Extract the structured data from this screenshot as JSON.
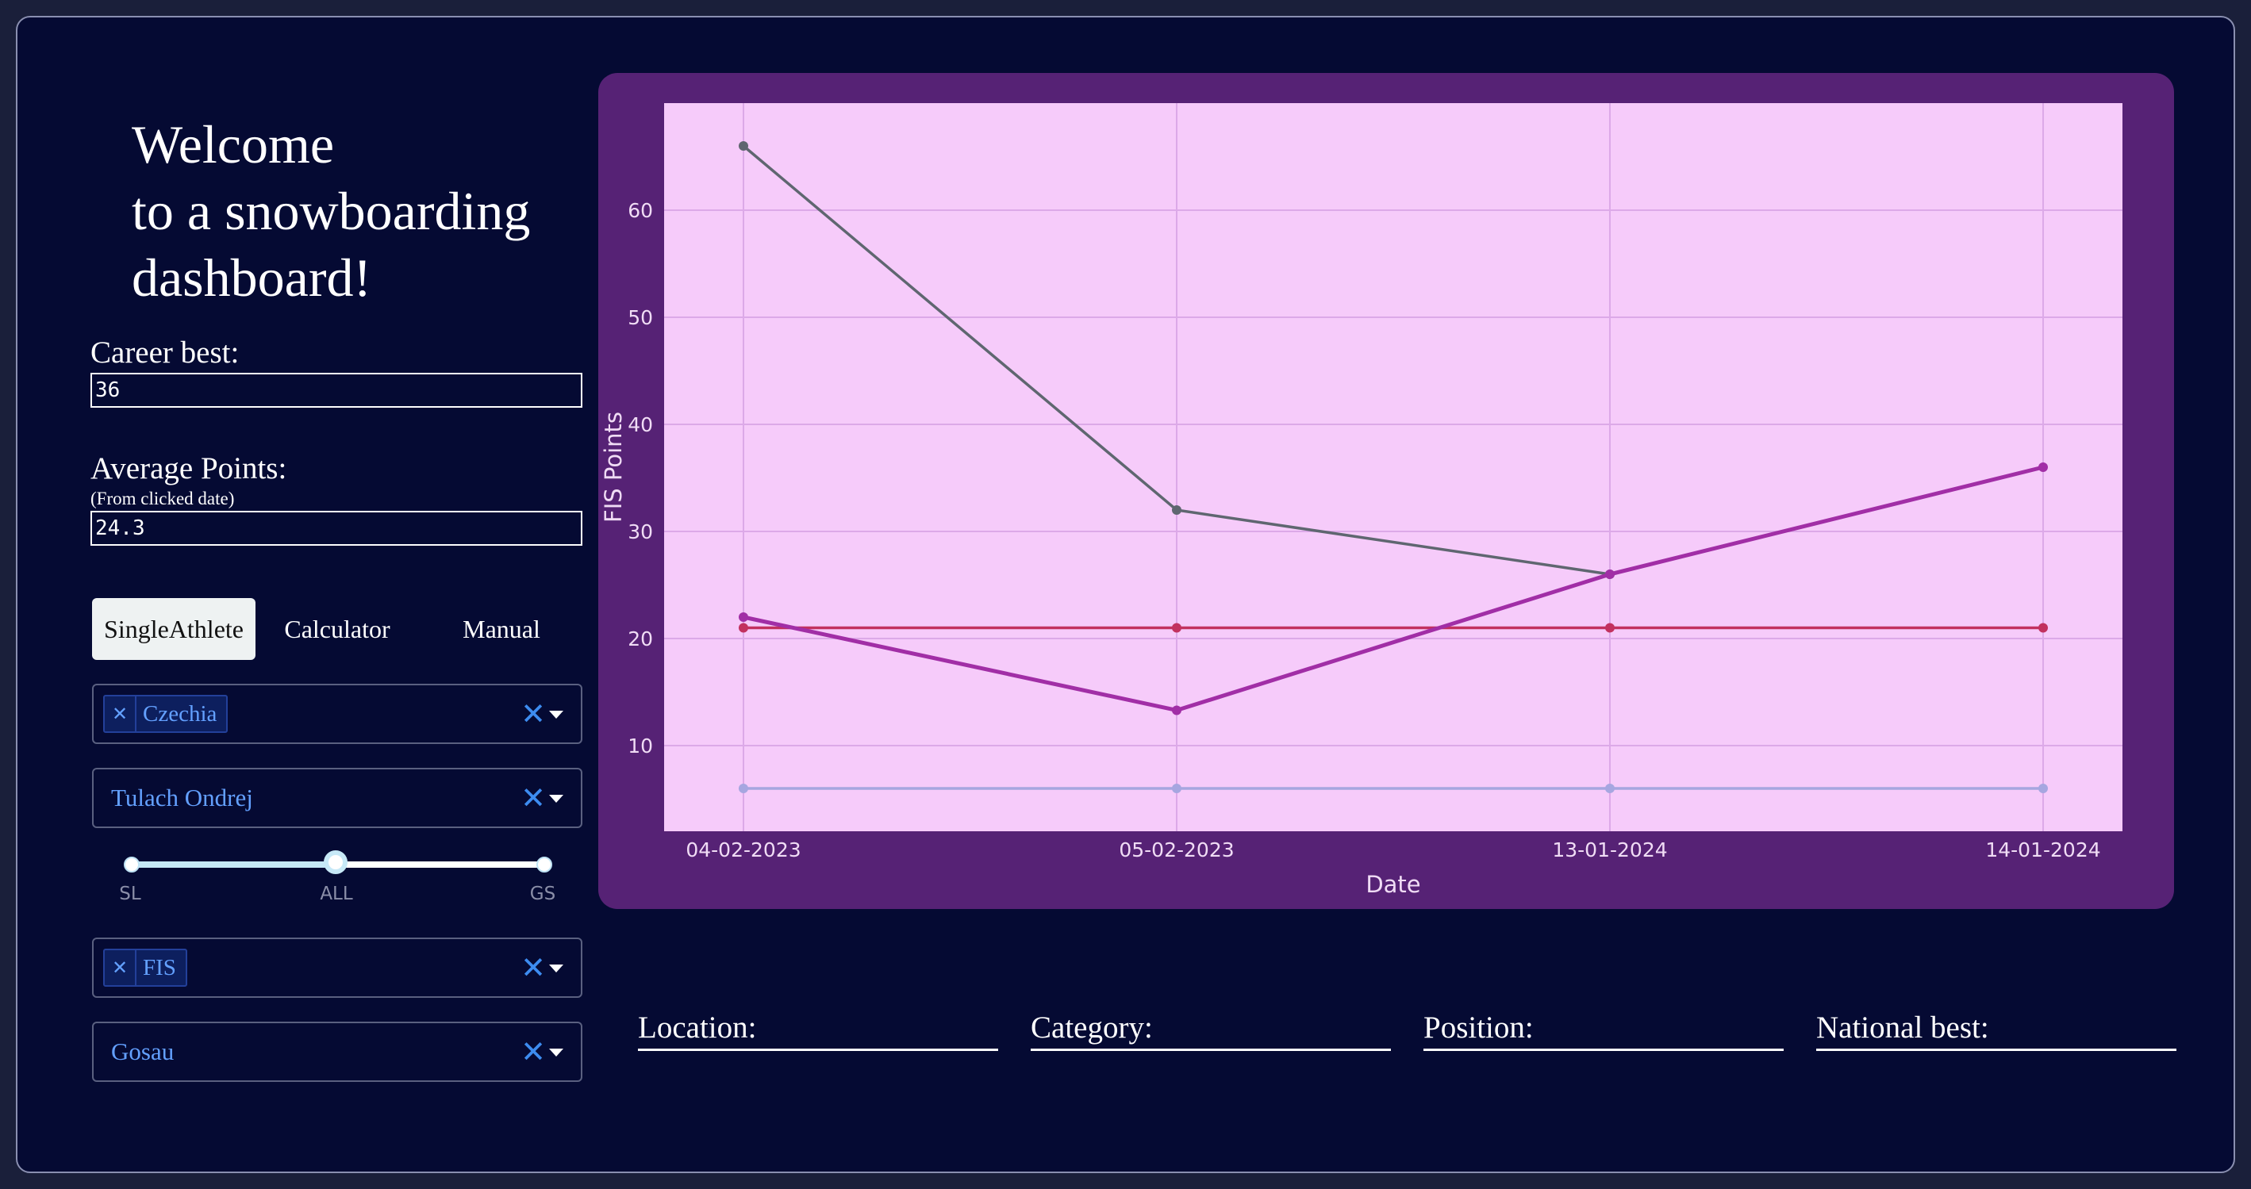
{
  "sidebar": {
    "welcome": [
      "Welcome",
      "to a snowboarding",
      "dashboard!"
    ],
    "career_best": {
      "label": "Career best:",
      "value": "36"
    },
    "average_points": {
      "label": "Average Points:",
      "sublabel": "(From clicked date)",
      "value": "24.3"
    },
    "tabs": [
      {
        "label": "SingleAthlete",
        "active": true
      },
      {
        "label": "Calculator",
        "active": false
      },
      {
        "label": "Manual",
        "active": false
      }
    ],
    "country_dropdown": {
      "chip": "Czechia",
      "clear_icon": "close-icon",
      "arrow_icon": "caret-down-icon"
    },
    "athlete_dropdown": {
      "value": "Tulach Ondrej"
    },
    "discipline_slider": {
      "marks": [
        "SL",
        "ALL",
        "GS"
      ],
      "selected": "ALL"
    },
    "category_dropdown": {
      "chip": "FIS"
    },
    "location_dropdown": {
      "value": "Gosau"
    }
  },
  "chart_data": {
    "type": "line",
    "title": "",
    "xlabel": "Date",
    "ylabel": "FIS Points",
    "categories": [
      "04-02-2023",
      "05-02-2023",
      "13-01-2024",
      "14-01-2024"
    ],
    "ylim": [
      2,
      70
    ],
    "yticks": [
      10,
      20,
      30,
      40,
      50,
      60
    ],
    "grid": true,
    "series": [
      {
        "values": [
          66,
          32,
          26,
          null
        ],
        "color": "#5f6670"
      },
      {
        "values": [
          21,
          21,
          21,
          21
        ],
        "color": "#c2315f"
      },
      {
        "values": [
          22,
          13.3,
          26,
          36
        ],
        "color": "#a12ea6"
      },
      {
        "values": [
          6,
          6,
          6,
          6
        ],
        "color": "#a6a6e0"
      }
    ],
    "background": "#f6cbfa",
    "panel_color": "#562275"
  },
  "info_fields": [
    {
      "label": "Location:"
    },
    {
      "label": "Category:"
    },
    {
      "label": "Position:"
    },
    {
      "label": "National best:"
    }
  ]
}
